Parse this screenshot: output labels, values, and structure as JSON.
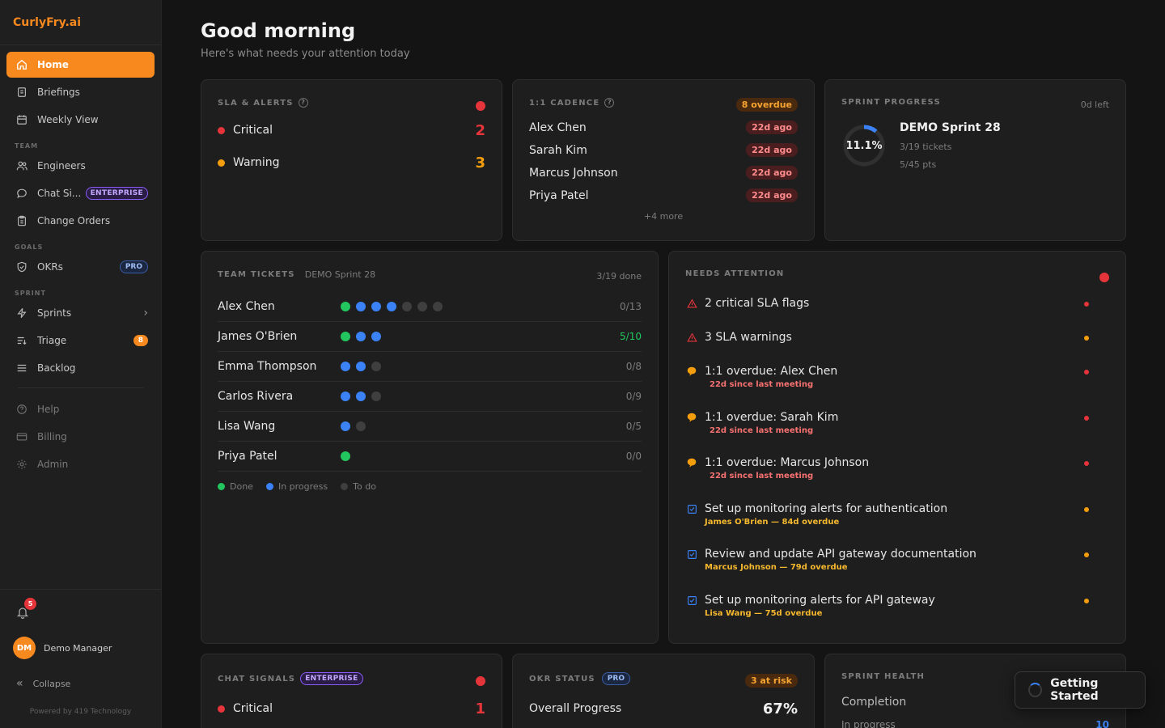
{
  "brand": "CurlyFry.ai",
  "sidebar": {
    "nav_main": [
      {
        "label": "Home",
        "icon": "home-icon"
      },
      {
        "label": "Briefings",
        "icon": "document-icon"
      },
      {
        "label": "Weekly View",
        "icon": "calendar-icon"
      }
    ],
    "section_team": "TEAM",
    "nav_team": [
      {
        "label": "Engineers",
        "icon": "users-icon"
      },
      {
        "label": "Chat Si...",
        "icon": "chat-icon",
        "badge": "ENTERPRISE"
      },
      {
        "label": "Change Orders",
        "icon": "clipboard-icon"
      }
    ],
    "section_goals": "GOALS",
    "nav_goals": [
      {
        "label": "OKRs",
        "icon": "shield-icon",
        "badge": "PRO"
      }
    ],
    "section_sprint": "SPRINT",
    "nav_sprint": [
      {
        "label": "Sprints",
        "icon": "bolt-icon"
      },
      {
        "label": "Triage",
        "icon": "triage-icon",
        "badge": "8"
      },
      {
        "label": "Backlog",
        "icon": "list-icon"
      }
    ],
    "nav_secondary": [
      {
        "label": "Help",
        "icon": "help-icon"
      },
      {
        "label": "Billing",
        "icon": "card-icon"
      },
      {
        "label": "Admin",
        "icon": "gear-icon"
      }
    ],
    "notification_count": "5",
    "user_initials": "DM",
    "user_name": "Demo Manager",
    "collapse_label": "Collapse",
    "powered_by": "Powered by 419 Technology"
  },
  "header": {
    "title": "Good morning",
    "subtitle": "Here's what needs your attention today"
  },
  "sla": {
    "title": "SLA & ALERTS",
    "rows": [
      {
        "label": "Critical",
        "count": "2",
        "color": "#e5343a"
      },
      {
        "label": "Warning",
        "count": "3",
        "color": "#f59e0b"
      }
    ]
  },
  "cadence": {
    "title": "1:1 CADENCE",
    "overdue_label": "8 overdue",
    "rows": [
      {
        "name": "Alex Chen",
        "ago": "22d ago"
      },
      {
        "name": "Sarah Kim",
        "ago": "22d ago"
      },
      {
        "name": "Marcus Johnson",
        "ago": "22d ago"
      },
      {
        "name": "Priya Patel",
        "ago": "22d ago"
      }
    ],
    "more": "+4 more"
  },
  "sprint_progress": {
    "title": "SPRINT PROGRESS",
    "days_left": "0d left",
    "percent_label": "11.1%",
    "percent": 11.1,
    "sprint_name": "DEMO Sprint 28",
    "tickets": "3/19 tickets",
    "points": "5/45 pts"
  },
  "team_tickets": {
    "title": "TEAM TICKETS",
    "sprint": "DEMO Sprint 28",
    "done_label": "3/19 done",
    "rows": [
      {
        "name": "Alex Chen",
        "dots": [
          "done",
          "progress",
          "progress",
          "progress",
          "todo",
          "todo",
          "todo"
        ],
        "count": "0/13",
        "count_color": "#7c7c7c"
      },
      {
        "name": "James O'Brien",
        "dots": [
          "done",
          "progress",
          "progress"
        ],
        "count": "5/10",
        "count_color": "#22c55e"
      },
      {
        "name": "Emma Thompson",
        "dots": [
          "progress",
          "progress",
          "todo"
        ],
        "count": "0/8",
        "count_color": "#7c7c7c"
      },
      {
        "name": "Carlos Rivera",
        "dots": [
          "progress",
          "progress",
          "todo"
        ],
        "count": "0/9",
        "count_color": "#7c7c7c"
      },
      {
        "name": "Lisa Wang",
        "dots": [
          "progress",
          "todo"
        ],
        "count": "0/5",
        "count_color": "#7c7c7c"
      },
      {
        "name": "Priya Patel",
        "dots": [
          "done"
        ],
        "count": "0/0",
        "count_color": "#7c7c7c"
      }
    ],
    "legend": [
      {
        "label": "Done",
        "color": "#22c55e"
      },
      {
        "label": "In progress",
        "color": "#3b82f6"
      },
      {
        "label": "To do",
        "color": "#3f3f3f"
      }
    ]
  },
  "needs_attention": {
    "title": "NEEDS ATTENTION",
    "items": [
      {
        "icon": "warning-icon",
        "text": "2 critical SLA flags",
        "sub": "",
        "sub_color": "",
        "dot": "#e5343a"
      },
      {
        "icon": "warning-icon",
        "text": "3 SLA warnings",
        "sub": "",
        "sub_color": "",
        "dot": "#f59e0b"
      },
      {
        "icon": "speech-icon",
        "text": "1:1 overdue: Alex Chen",
        "sub": "22d since last meeting",
        "sub_color": "#f87171",
        "dot": "#e5343a"
      },
      {
        "icon": "speech-icon",
        "text": "1:1 overdue: Sarah Kim",
        "sub": "22d since last meeting",
        "sub_color": "#f87171",
        "dot": "#e5343a"
      },
      {
        "icon": "speech-icon",
        "text": "1:1 overdue: Marcus Johnson",
        "sub": "22d since last meeting",
        "sub_color": "#f87171",
        "dot": "#e5343a"
      },
      {
        "icon": "checkbox-icon",
        "text": "Set up monitoring alerts for authentication",
        "sub": "James O'Brien — 84d overdue",
        "sub_color": "#f5b82e",
        "dot": "#f59e0b"
      },
      {
        "icon": "checkbox-icon",
        "text": "Review and update API gateway documentation",
        "sub": "Marcus Johnson — 79d overdue",
        "sub_color": "#f5b82e",
        "dot": "#f59e0b"
      },
      {
        "icon": "checkbox-icon",
        "text": "Set up monitoring alerts for API gateway",
        "sub": "Lisa Wang — 75d overdue",
        "sub_color": "#f5b82e",
        "dot": "#f59e0b"
      }
    ]
  },
  "chat_signals": {
    "title": "CHAT SIGNALS",
    "badge": "ENTERPRISE",
    "rows": [
      {
        "label": "Critical",
        "count": "1"
      }
    ]
  },
  "okr_status": {
    "title": "OKR STATUS",
    "badge": "PRO",
    "at_risk": "3 at risk",
    "overall_label": "Overall Progress",
    "overall_value": "67%"
  },
  "sprint_health": {
    "title": "SPRINT HEALTH",
    "completion_label": "Completion",
    "in_progress_label": "In progress",
    "in_progress_value": "10"
  },
  "toast": {
    "label": "Getting Started"
  }
}
